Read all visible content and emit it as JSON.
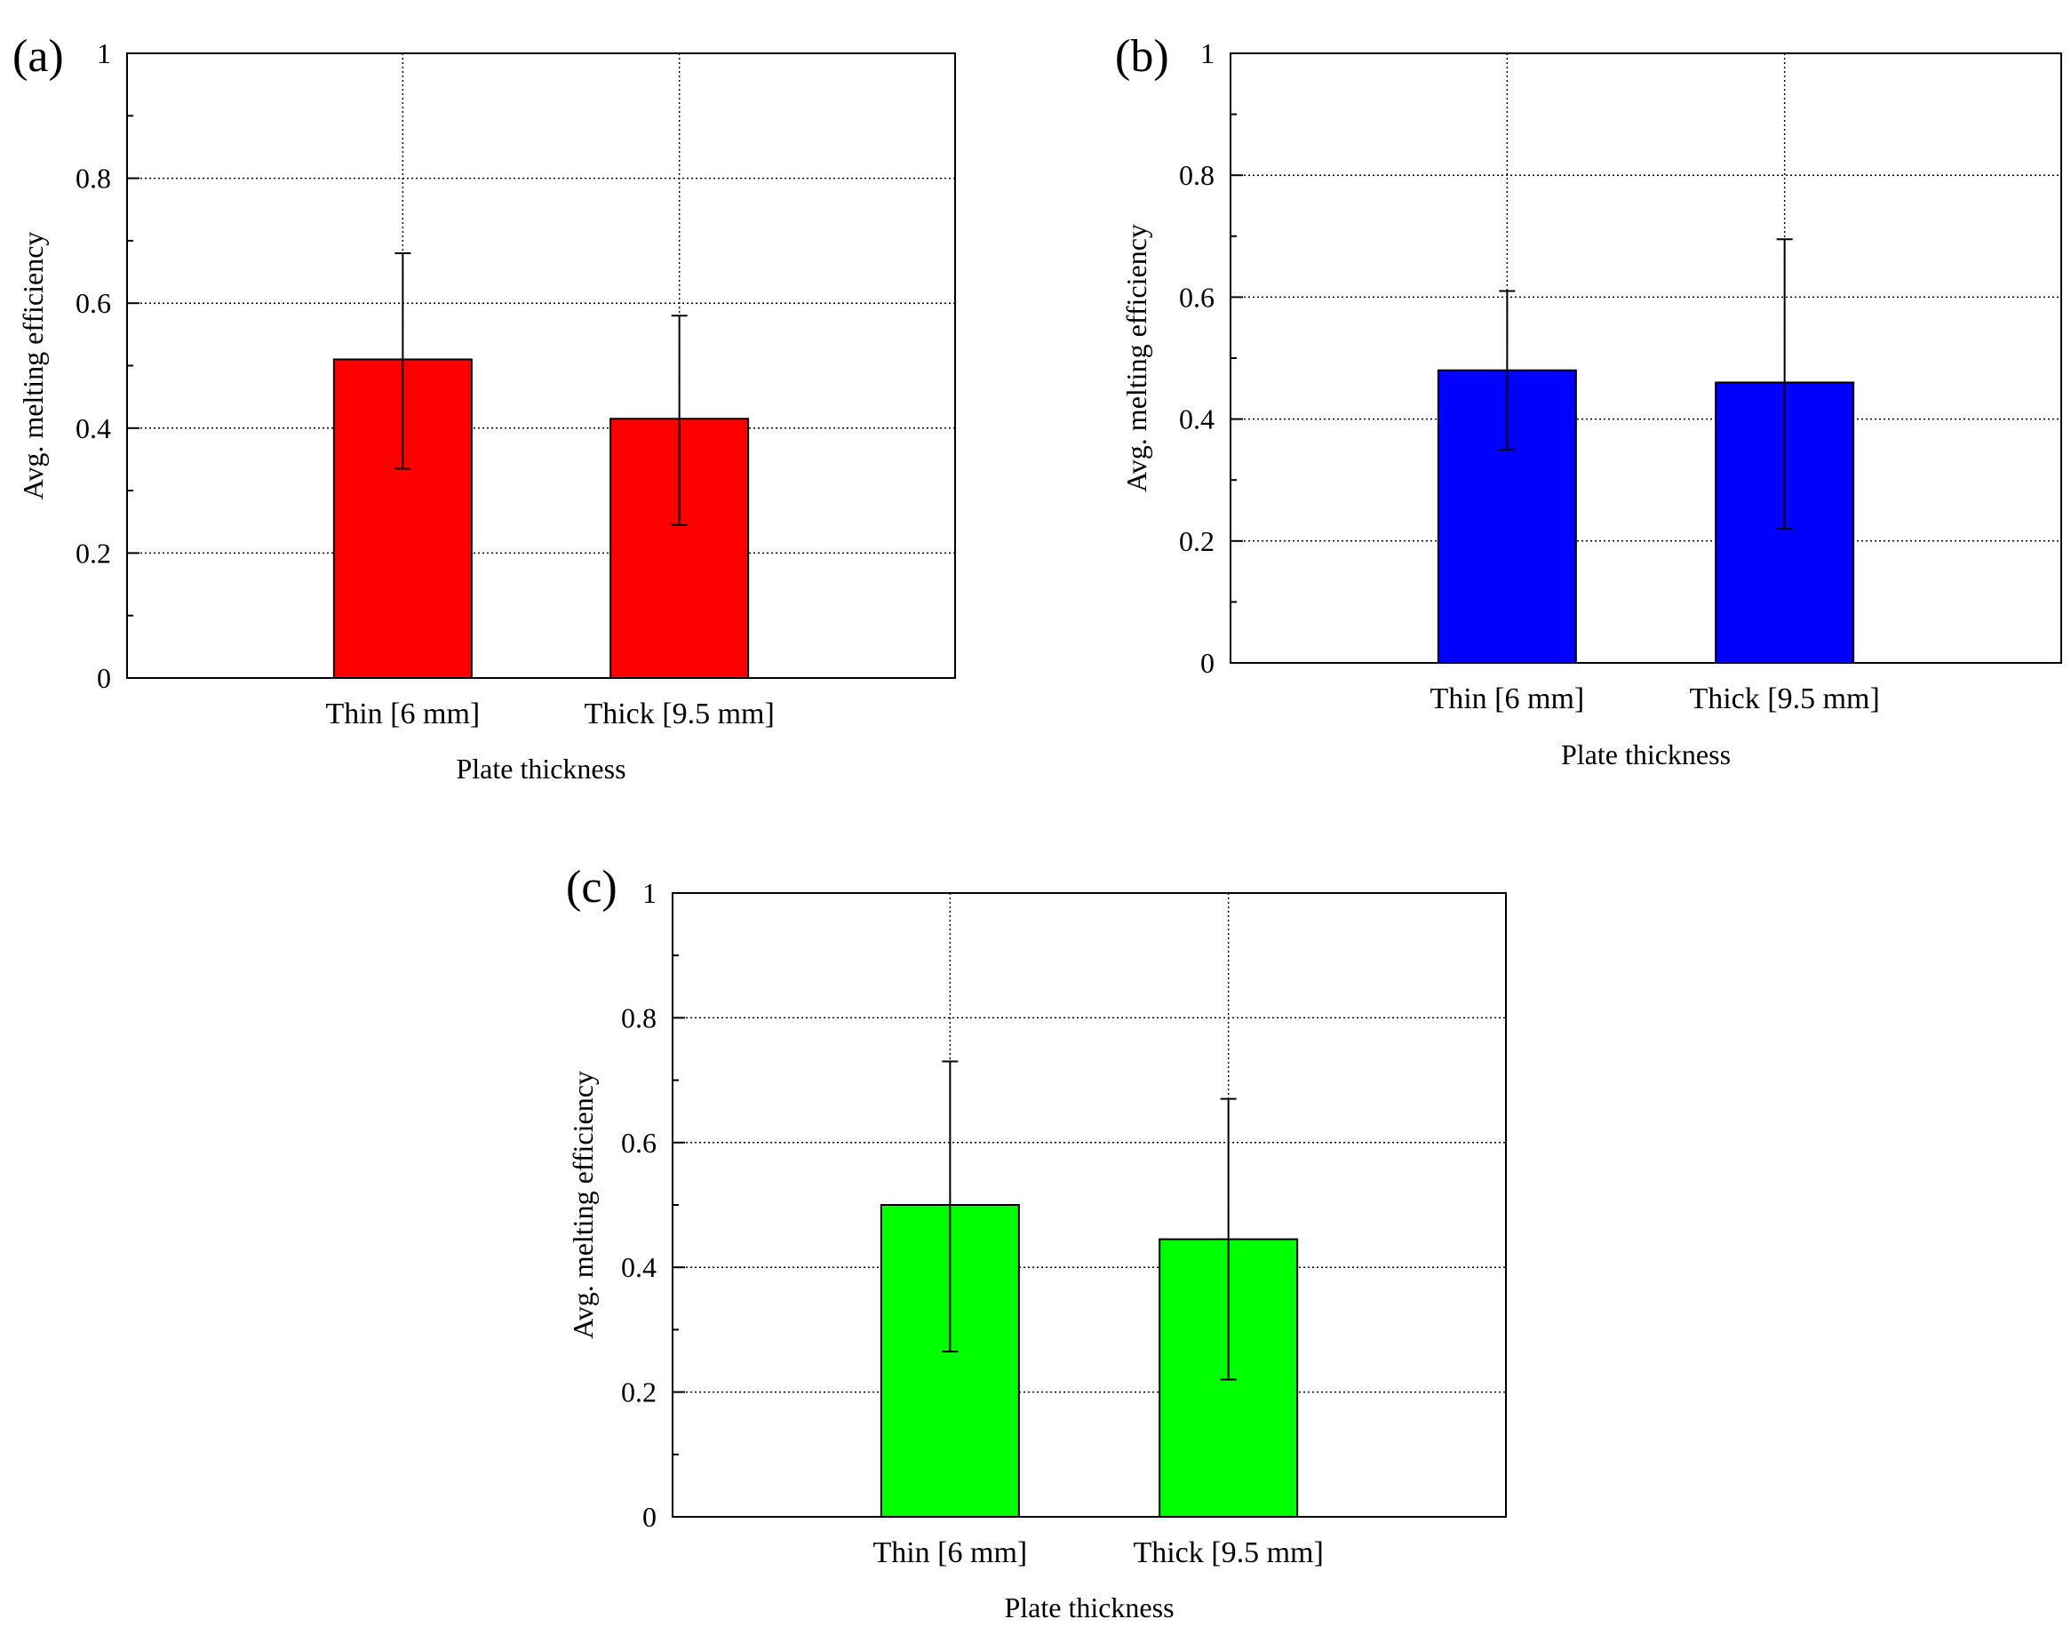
{
  "chart_data": [
    {
      "id": "a",
      "type": "bar",
      "panel_label": "(a)",
      "categories": [
        "Thin [6 mm]",
        "Thick [9.5 mm]"
      ],
      "values": [
        0.51,
        0.415
      ],
      "error_high": [
        0.68,
        0.58
      ],
      "error_low": [
        0.335,
        0.245
      ],
      "color": "#ff0000",
      "xlabel": "Plate thickness",
      "ylabel": "Avg. melting efficiency",
      "ylim": [
        0,
        1
      ],
      "yticks": [
        "0",
        "0.2",
        "0.4",
        "0.6",
        "0.8",
        "1"
      ],
      "grid": true
    },
    {
      "id": "b",
      "type": "bar",
      "panel_label": "(b)",
      "categories": [
        "Thin [6 mm]",
        "Thick [9.5 mm]"
      ],
      "values": [
        0.48,
        0.46
      ],
      "error_high": [
        0.61,
        0.695
      ],
      "error_low": [
        0.35,
        0.22
      ],
      "color": "#0000ff",
      "xlabel": "Plate thickness",
      "ylabel": "Avg. melting efficiency",
      "ylim": [
        0,
        1
      ],
      "yticks": [
        "0",
        "0.2",
        "0.4",
        "0.6",
        "0.8",
        "1"
      ],
      "grid": true
    },
    {
      "id": "c",
      "type": "bar",
      "panel_label": "(c)",
      "categories": [
        "Thin [6 mm]",
        "Thick [9.5 mm]"
      ],
      "values": [
        0.5,
        0.445
      ],
      "error_high": [
        0.73,
        0.67
      ],
      "error_low": [
        0.265,
        0.22
      ],
      "color": "#00ff00",
      "xlabel": "Plate thickness",
      "ylabel": "Avg. melting efficiency",
      "ylim": [
        0,
        1
      ],
      "yticks": [
        "0",
        "0.2",
        "0.4",
        "0.6",
        "0.8",
        "1"
      ],
      "grid": true
    }
  ]
}
